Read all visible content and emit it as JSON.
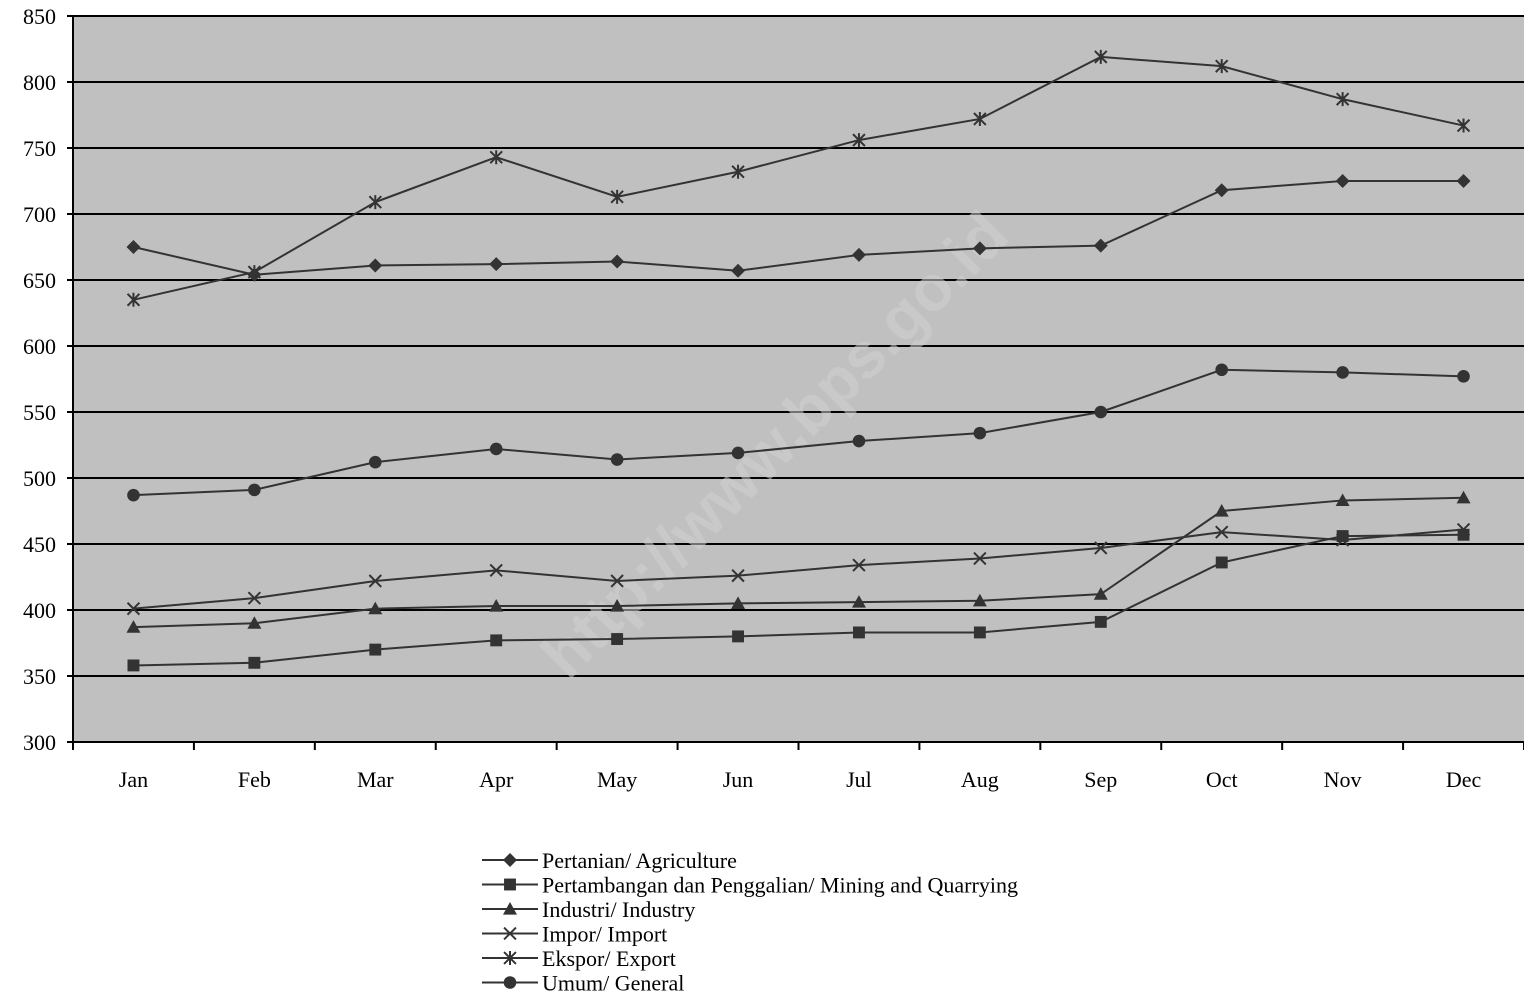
{
  "watermark": "http://www.bps.go.id",
  "chart_data": {
    "type": "line",
    "title": "",
    "xlabel": "",
    "ylabel": "",
    "categories": [
      "Jan",
      "Feb",
      "Mar",
      "Apr",
      "May",
      "Jun",
      "Jul",
      "Aug",
      "Sep",
      "Oct",
      "Nov",
      "Dec"
    ],
    "ylim": [
      300,
      850
    ],
    "yticks": [
      300,
      350,
      400,
      450,
      500,
      550,
      600,
      650,
      700,
      750,
      800,
      850
    ],
    "grid": true,
    "legend_position": "bottom",
    "colors": {
      "plot_bg": "#c0c0c0",
      "line": "#333333",
      "grid": "#000000"
    },
    "series": [
      {
        "name": "Pertanian/ Agriculture",
        "marker": "diamond",
        "values": [
          675,
          654,
          661,
          662,
          664,
          657,
          669,
          674,
          676,
          718,
          725,
          725
        ]
      },
      {
        "name": "Pertambangan dan Penggalian/ Mining and Quarrying",
        "marker": "square",
        "values": [
          358,
          360,
          370,
          377,
          378,
          380,
          383,
          383,
          391,
          436,
          456,
          457
        ]
      },
      {
        "name": "Industri/ Industry",
        "marker": "triangle",
        "values": [
          387,
          390,
          401,
          403,
          403,
          405,
          406,
          407,
          412,
          475,
          483,
          485
        ]
      },
      {
        "name": "Impor/ Import",
        "marker": "x",
        "values": [
          401,
          409,
          422,
          430,
          422,
          426,
          434,
          439,
          447,
          459,
          453,
          461
        ]
      },
      {
        "name": "Ekspor/ Export",
        "marker": "asterisk",
        "values": [
          635,
          656,
          709,
          743,
          713,
          732,
          756,
          772,
          819,
          812,
          787,
          767
        ]
      },
      {
        "name": "Umum/ General",
        "marker": "circle",
        "values": [
          487,
          491,
          512,
          522,
          514,
          519,
          528,
          534,
          550,
          582,
          580,
          577
        ]
      }
    ]
  }
}
